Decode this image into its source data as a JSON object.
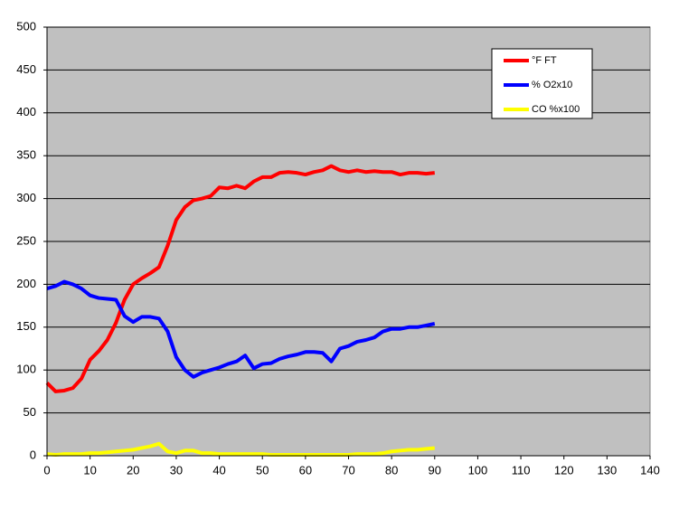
{
  "chart_data": {
    "type": "line",
    "x": [
      0,
      2,
      4,
      6,
      8,
      10,
      12,
      14,
      16,
      18,
      20,
      22,
      24,
      26,
      28,
      30,
      32,
      34,
      36,
      38,
      40,
      42,
      44,
      46,
      48,
      50,
      52,
      54,
      56,
      58,
      60,
      62,
      64,
      66,
      68,
      70,
      72,
      74,
      76,
      78,
      80,
      82,
      84,
      86,
      88,
      90
    ],
    "series": [
      {
        "name": "°F FT",
        "color": "#ff0000",
        "values": [
          85,
          75,
          76,
          79,
          90,
          112,
          122,
          135,
          155,
          182,
          200,
          207,
          213,
          220,
          245,
          275,
          290,
          298,
          300,
          303,
          313,
          312,
          315,
          312,
          320,
          325,
          325,
          330,
          331,
          330,
          328,
          331,
          333,
          338,
          333,
          331,
          333,
          331,
          332,
          331,
          331,
          328,
          330,
          330,
          329,
          330
        ]
      },
      {
        "name": "% O2x10",
        "color": "#0000ff",
        "values": [
          195,
          198,
          203,
          200,
          195,
          187,
          184,
          183,
          182,
          163,
          156,
          162,
          162,
          160,
          145,
          115,
          100,
          92,
          97,
          100,
          103,
          107,
          110,
          117,
          102,
          107,
          108,
          113,
          116,
          118,
          121,
          121,
          120,
          110,
          125,
          128,
          133,
          135,
          138,
          145,
          148,
          148,
          150,
          150,
          152,
          154
        ]
      },
      {
        "name": "CO %x100",
        "color": "#ffff00",
        "values": [
          2,
          1,
          2,
          2,
          2,
          3,
          3,
          4,
          5,
          6,
          7,
          9,
          11,
          14,
          5,
          3,
          6,
          6,
          3,
          3,
          2,
          2,
          2,
          2,
          2,
          2,
          1,
          1,
          1,
          1,
          1,
          1,
          1,
          1,
          1,
          1,
          2,
          2,
          2,
          3,
          5,
          6,
          7,
          7,
          8,
          9
        ]
      }
    ],
    "xlim": [
      0,
      140
    ],
    "xticks": [
      0,
      10,
      20,
      30,
      40,
      50,
      60,
      70,
      80,
      90,
      100,
      110,
      120,
      130,
      140
    ],
    "ylim": [
      0,
      500
    ],
    "yticks": [
      0,
      50,
      100,
      150,
      200,
      250,
      300,
      350,
      400,
      450,
      500
    ],
    "grid": true,
    "legend": "top-right",
    "background": "#c0c0c0"
  }
}
